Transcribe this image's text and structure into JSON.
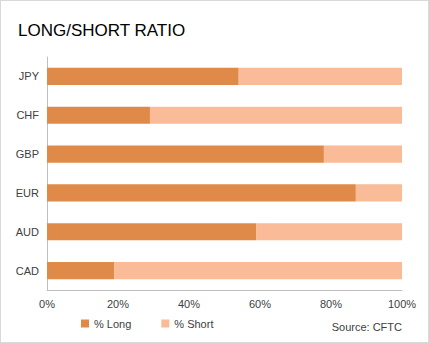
{
  "chart_data": {
    "type": "bar",
    "title": "LONG/SHORT RATIO",
    "orientation": "horizontal",
    "stacked": true,
    "grid": false,
    "legend": "bottom",
    "data_labels": false,
    "categories": [
      "JPY",
      "CHF",
      "GBP",
      "EUR",
      "AUD",
      "CAD"
    ],
    "series": [
      {
        "name": "% Long",
        "color": "#df8a48",
        "values": [
          54,
          29,
          78,
          87,
          59,
          19
        ]
      },
      {
        "name": "% Short",
        "color": "#f9bb98",
        "values": [
          46,
          71,
          22,
          13,
          41,
          81
        ]
      }
    ],
    "xlim": [
      0,
      100
    ],
    "xticks": [
      {
        "value": 0,
        "label": "0%"
      },
      {
        "value": 20,
        "label": "20%"
      },
      {
        "value": 40,
        "label": "40%"
      },
      {
        "value": 60,
        "label": "60%"
      },
      {
        "value": 80,
        "label": "80%"
      },
      {
        "value": 100,
        "label": "100%"
      }
    ],
    "annotations": [
      "Source: CFTC"
    ]
  }
}
